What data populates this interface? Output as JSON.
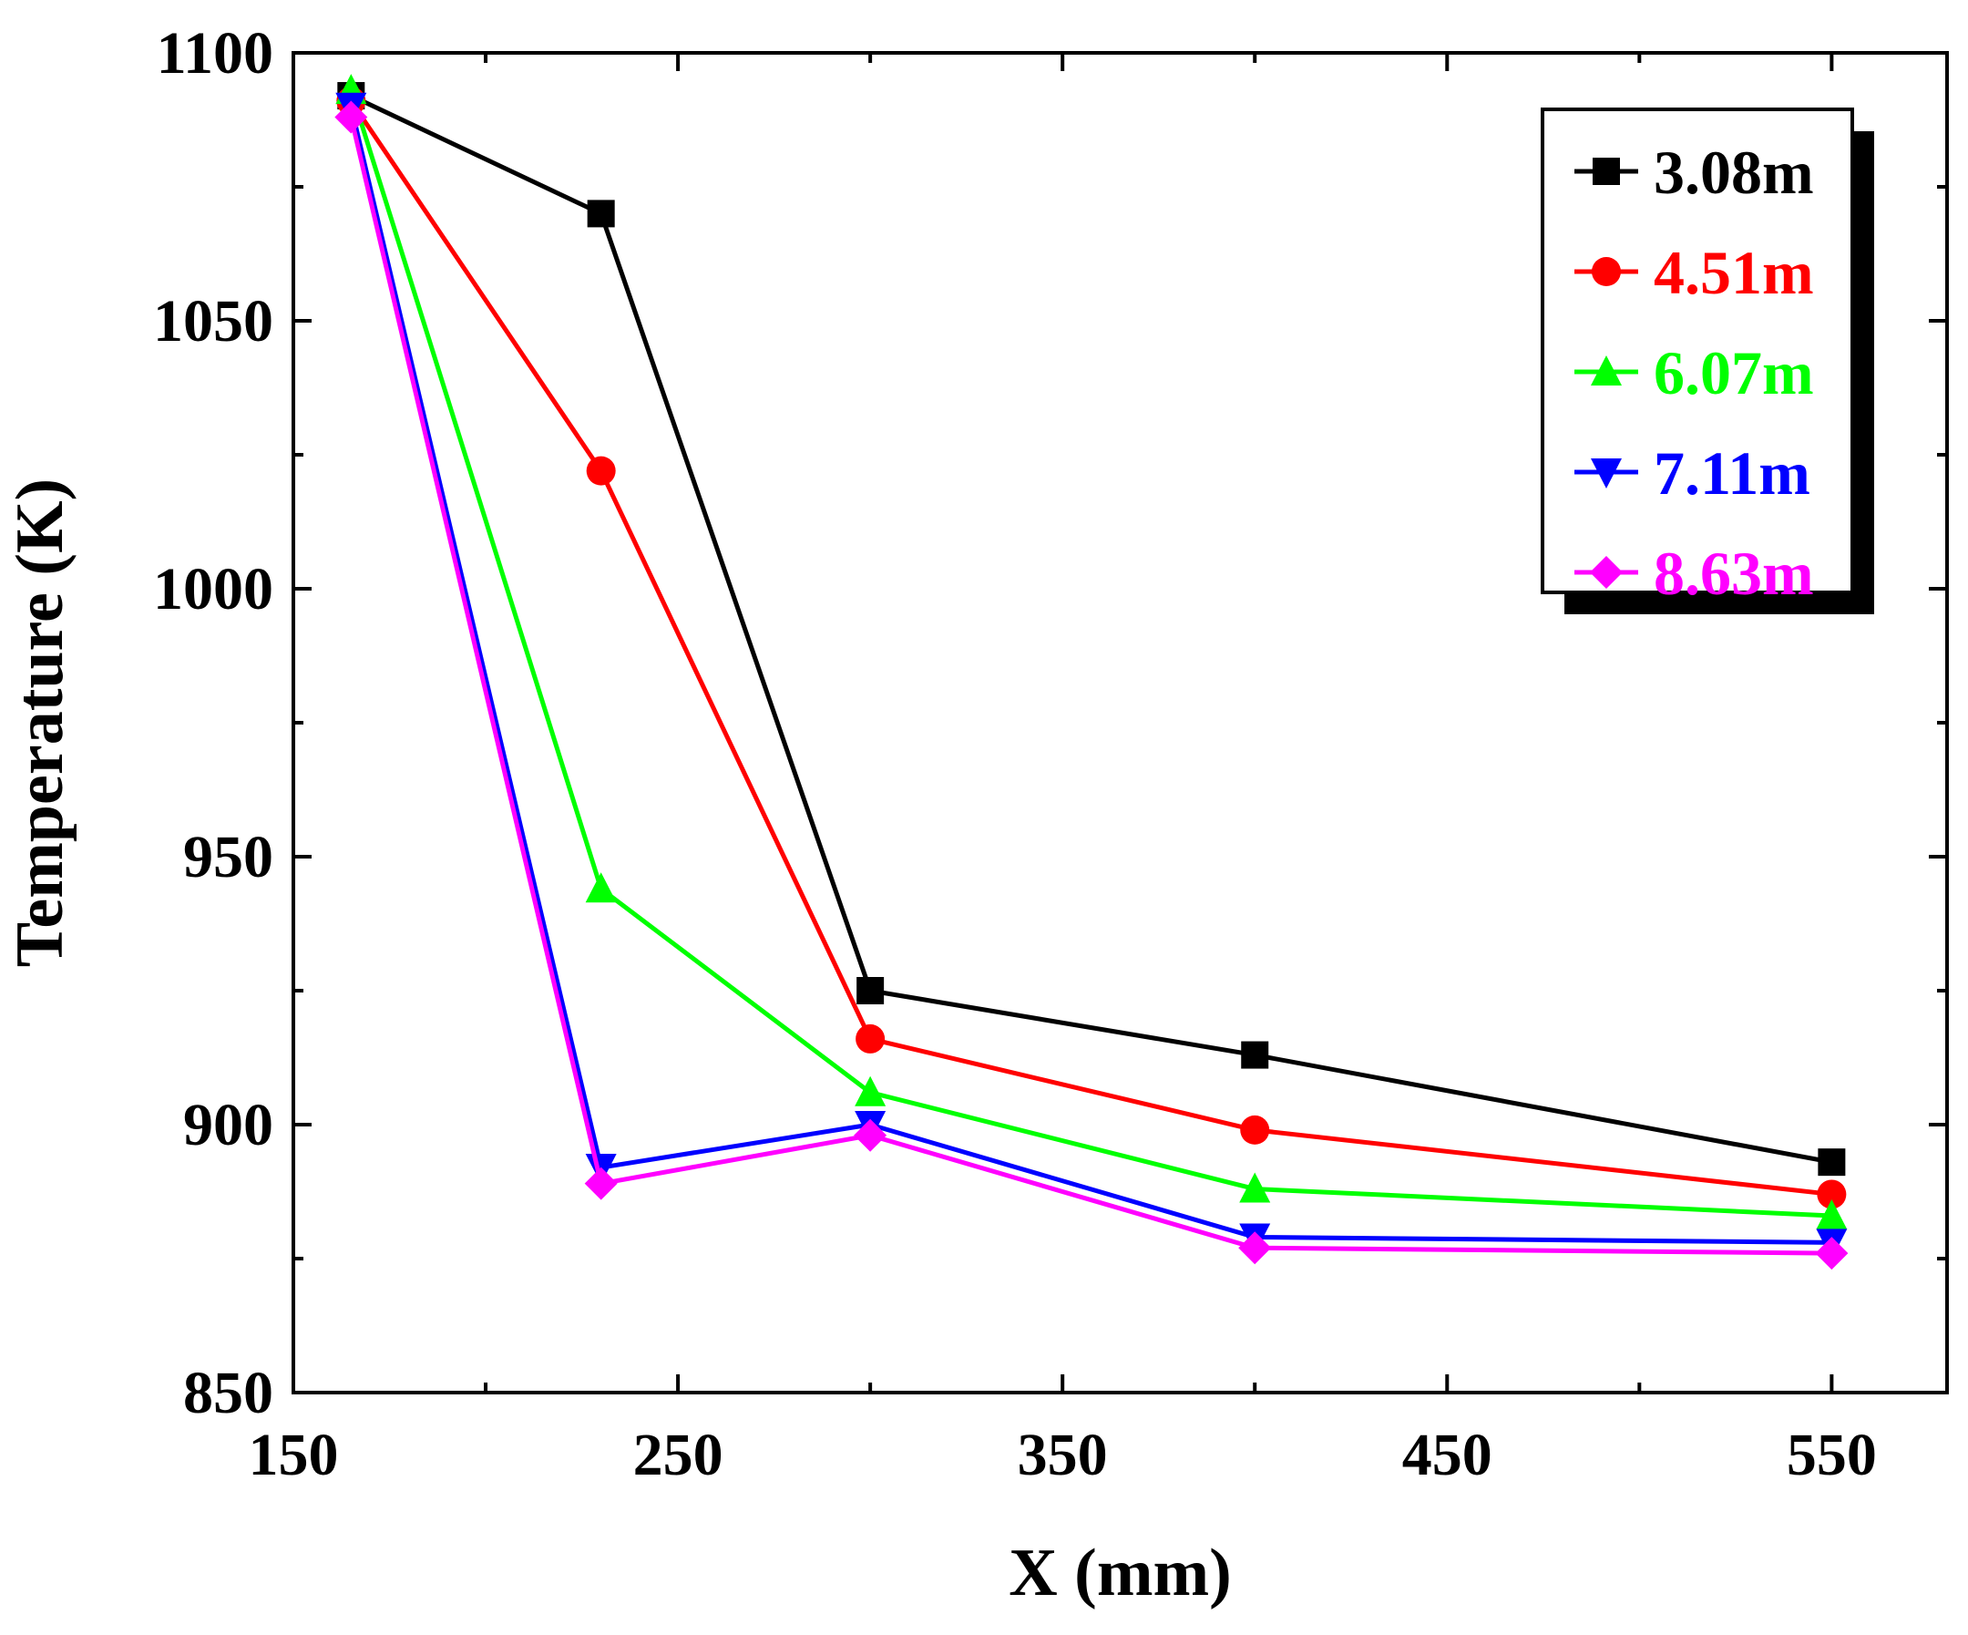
{
  "chart_data": {
    "type": "line",
    "title": "",
    "xlabel": "X (mm)",
    "ylabel": "Temperature (K)",
    "xlim": [
      150,
      580
    ],
    "ylim": [
      850,
      1100
    ],
    "xticks": [
      150,
      250,
      350,
      450,
      550
    ],
    "yticks": [
      850,
      900,
      950,
      1000,
      1050,
      1100
    ],
    "xtick_labels": [
      "150",
      "250",
      "350",
      "450",
      "550"
    ],
    "ytick_labels": [
      "850",
      "900",
      "950",
      "1000",
      "1050",
      "1100"
    ],
    "legend_position": "top-right",
    "x": [
      165,
      230,
      300,
      400,
      550
    ],
    "series": [
      {
        "name": "3.08m",
        "color": "#000000",
        "marker": "square",
        "values": [
          1092,
          1070,
          925,
          913,
          893
        ]
      },
      {
        "name": "4.51m",
        "color": "#ff0000",
        "marker": "circle",
        "values": [
          1091,
          1022,
          916,
          899,
          887
        ]
      },
      {
        "name": "6.07m",
        "color": "#00ff00",
        "marker": "triangle-up",
        "values": [
          1093,
          944,
          906,
          888,
          883
        ]
      },
      {
        "name": "7.11m",
        "color": "#0000ff",
        "marker": "triangle-down",
        "values": [
          1090,
          892,
          900,
          879,
          878
        ]
      },
      {
        "name": "8.63m",
        "color": "#ff00ff",
        "marker": "diamond",
        "values": [
          1088,
          889,
          898,
          877,
          876
        ]
      }
    ]
  }
}
